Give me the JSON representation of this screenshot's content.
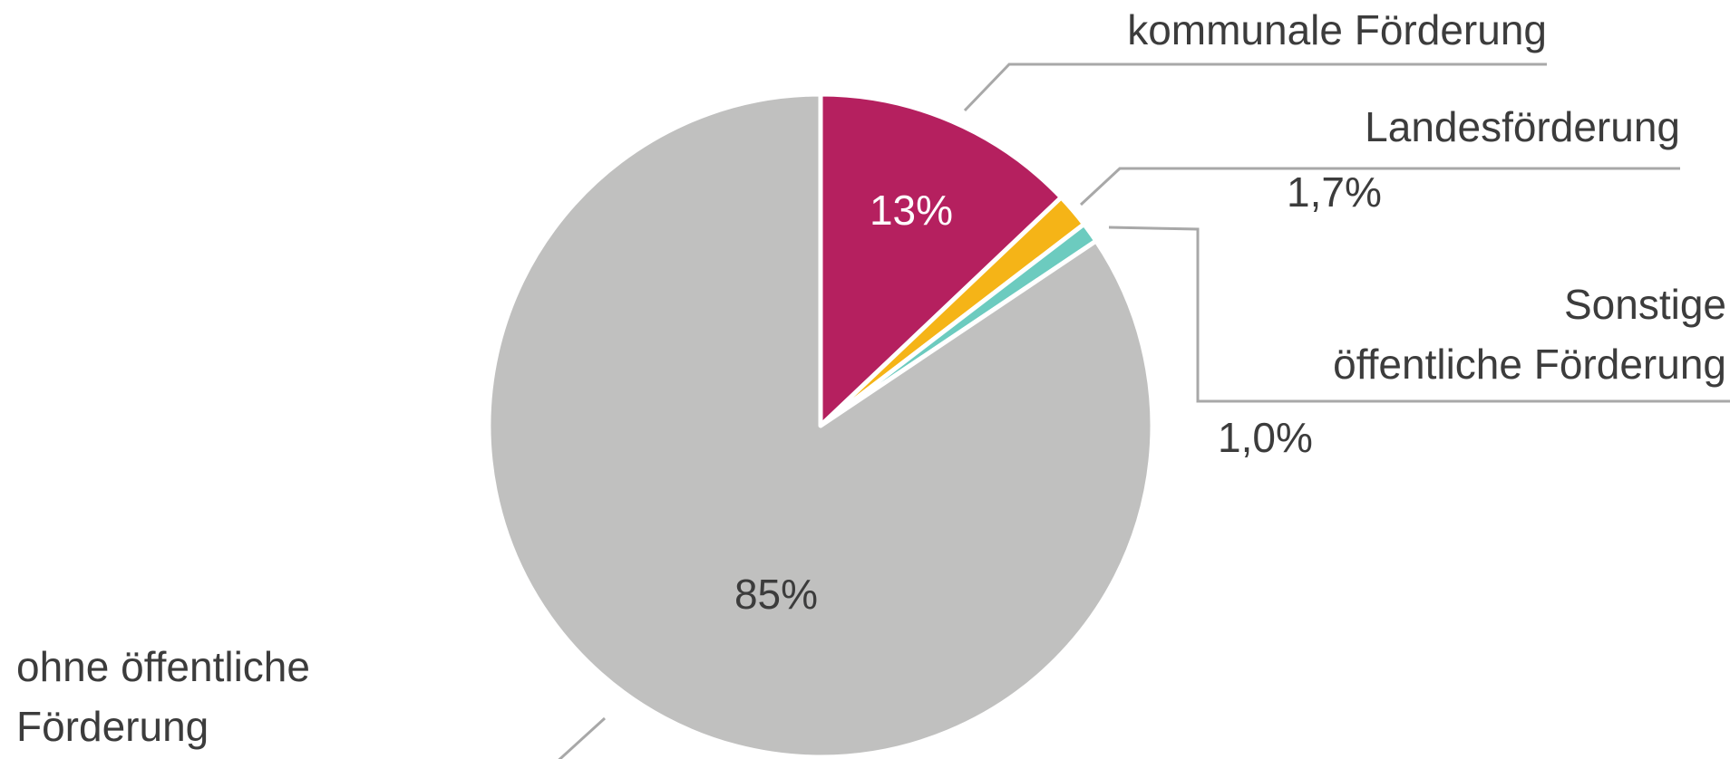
{
  "chart_data": {
    "type": "pie",
    "categories": [
      "kommunale Förderung",
      "Landesförderung",
      "Sonstige öffentliche Förderung",
      "ohne öffentliche Förderung"
    ],
    "values": [
      13,
      1.7,
      1.0,
      85
    ],
    "value_labels": [
      "13%",
      "1,7%",
      "1,0%",
      "85%"
    ],
    "colors": [
      "#b5205f",
      "#f5b417",
      "#6ccbbf",
      "#c0c0bf"
    ]
  }
}
